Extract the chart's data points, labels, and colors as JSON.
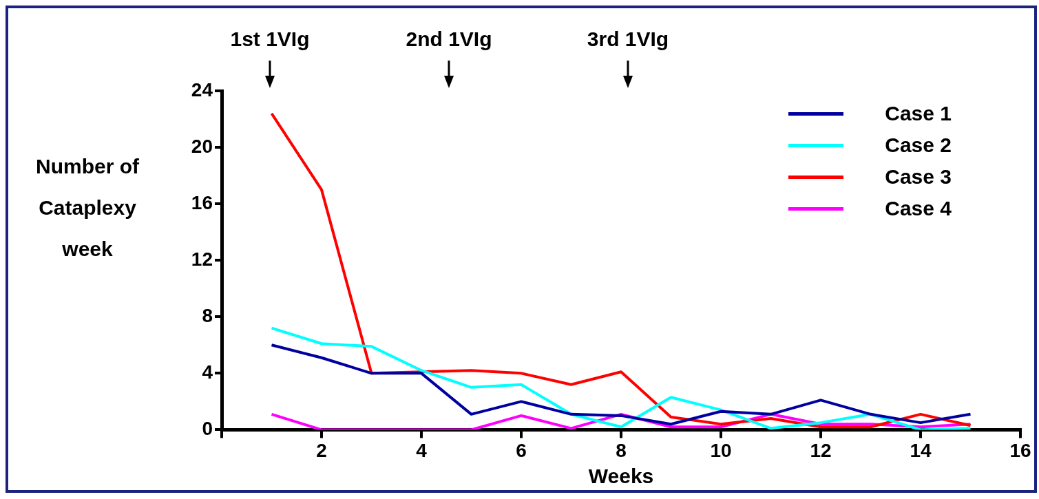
{
  "chart_data": {
    "type": "line",
    "xlabel": "Weeks",
    "ylabel": "Number of Cataplexy week",
    "x": [
      1,
      2,
      3,
      4,
      5,
      6,
      7,
      8,
      9,
      10,
      11,
      12,
      13,
      14,
      15
    ],
    "series": [
      {
        "name": "Case 1",
        "color": "#0000a0",
        "values": [
          6,
          5.1,
          4,
          4,
          1.1,
          2,
          1.1,
          1,
          0.4,
          1.3,
          1.1,
          2.1,
          1.1,
          0.5,
          1.1
        ]
      },
      {
        "name": "Case 2",
        "color": "#00ffff",
        "values": [
          7.2,
          6.1,
          5.9,
          4.2,
          3,
          3.2,
          1.1,
          0.2,
          2.3,
          1.4,
          0.1,
          0.5,
          1.1,
          0,
          0.1
        ]
      },
      {
        "name": "Case 3",
        "color": "#ff0000",
        "values": [
          22.4,
          17,
          4,
          4.1,
          4.2,
          4,
          3.2,
          4.1,
          0.9,
          0.4,
          0.8,
          0.2,
          0.2,
          1.1,
          0.3
        ]
      },
      {
        "name": "Case 4",
        "color": "#ff00ff",
        "values": [
          1.1,
          0,
          0,
          0,
          0,
          1,
          0.1,
          1.1,
          0.2,
          0.2,
          1.1,
          0.4,
          0.4,
          0.2,
          0.4
        ]
      }
    ],
    "xlim": [
      0,
      16
    ],
    "xticks": [
      {
        "value": 0,
        "label": null
      },
      2,
      4,
      6,
      8,
      10,
      12,
      14,
      16
    ],
    "ylim": [
      0,
      24
    ],
    "yticks": [
      0,
      4,
      8,
      12,
      16,
      20,
      24
    ],
    "grid": false,
    "legend": "top right",
    "marker": "none",
    "line_style": "solid",
    "annotations": [
      "1st 1VIg",
      "2nd 1VIg",
      "3rd 1VIg"
    ]
  }
}
